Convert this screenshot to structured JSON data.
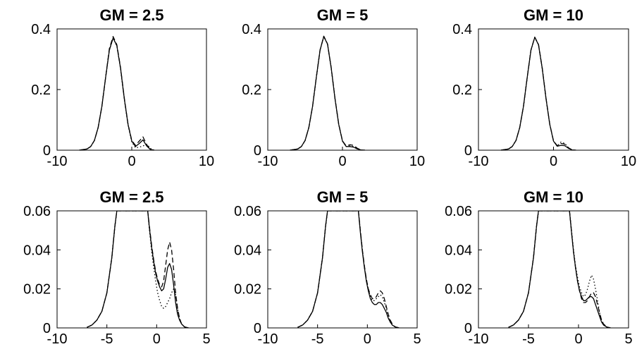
{
  "chart_data": [
    {
      "type": "line",
      "title": "GM = 2.5",
      "xlim": [
        -10,
        10
      ],
      "ylim": [
        0,
        0.4
      ],
      "xticks": [
        -10,
        0,
        10
      ],
      "xtick_labels": [
        "-10",
        "0",
        "10"
      ],
      "yticks": [
        0,
        0.2,
        0.4
      ],
      "ytick_labels": [
        "0",
        "0.2",
        "0.4"
      ],
      "x": [
        -7,
        -6,
        -5.5,
        -5,
        -4.5,
        -4,
        -3.5,
        -3,
        -2.5,
        -2,
        -1.5,
        -1,
        -0.5,
        0,
        0.5,
        1,
        1.5,
        2,
        2.5,
        3
      ],
      "series": [
        {
          "dash": "solid",
          "values": [
            0.0003,
            0.004,
            0.012,
            0.032,
            0.075,
            0.145,
            0.24,
            0.33,
            0.37,
            0.345,
            0.27,
            0.17,
            0.085,
            0.03,
            0.012,
            0.022,
            0.034,
            0.014,
            0.002,
            0.0
          ]
        },
        {
          "dash": "dashed",
          "values": [
            0.0003,
            0.004,
            0.012,
            0.032,
            0.075,
            0.145,
            0.24,
            0.335,
            0.375,
            0.348,
            0.272,
            0.172,
            0.086,
            0.032,
            0.016,
            0.03,
            0.044,
            0.018,
            0.003,
            0.0
          ]
        },
        {
          "dash": "dotted",
          "values": [
            0.0003,
            0.004,
            0.012,
            0.032,
            0.075,
            0.145,
            0.24,
            0.33,
            0.37,
            0.344,
            0.268,
            0.168,
            0.083,
            0.028,
            0.008,
            0.01,
            0.014,
            0.02,
            0.006,
            0.0
          ]
        }
      ]
    },
    {
      "type": "line",
      "title": "GM = 5",
      "xlim": [
        -10,
        10
      ],
      "ylim": [
        0,
        0.4
      ],
      "xticks": [
        -10,
        0,
        10
      ],
      "xtick_labels": [
        "-10",
        "0",
        "10"
      ],
      "yticks": [
        0,
        0.2,
        0.4
      ],
      "ytick_labels": [
        "0",
        "0.2",
        "0.4"
      ],
      "x": [
        -7,
        -6,
        -5.5,
        -5,
        -4.5,
        -4,
        -3.5,
        -3,
        -2.5,
        -2,
        -1.5,
        -1,
        -0.5,
        0,
        0.5,
        1,
        1.5,
        2,
        2.5,
        3
      ],
      "series": [
        {
          "dash": "solid",
          "values": [
            0.0003,
            0.004,
            0.012,
            0.032,
            0.075,
            0.145,
            0.24,
            0.33,
            0.375,
            0.35,
            0.27,
            0.17,
            0.085,
            0.03,
            0.012,
            0.012,
            0.01,
            0.004,
            0.001,
            0.0
          ]
        },
        {
          "dash": "dashed",
          "values": [
            0.0003,
            0.004,
            0.012,
            0.032,
            0.075,
            0.145,
            0.24,
            0.33,
            0.376,
            0.351,
            0.271,
            0.171,
            0.086,
            0.031,
            0.014,
            0.018,
            0.016,
            0.006,
            0.001,
            0.0
          ]
        },
        {
          "dash": "dotted",
          "values": [
            0.0003,
            0.004,
            0.012,
            0.032,
            0.075,
            0.145,
            0.24,
            0.33,
            0.375,
            0.35,
            0.27,
            0.17,
            0.085,
            0.03,
            0.012,
            0.014,
            0.012,
            0.005,
            0.001,
            0.0
          ]
        }
      ]
    },
    {
      "type": "line",
      "title": "GM = 10",
      "xlim": [
        -10,
        10
      ],
      "ylim": [
        0,
        0.4
      ],
      "xticks": [
        -10,
        0,
        10
      ],
      "xtick_labels": [
        "-10",
        "0",
        "10"
      ],
      "yticks": [
        0,
        0.2,
        0.4
      ],
      "ytick_labels": [
        "0",
        "0.2",
        "0.4"
      ],
      "x": [
        -7,
        -6,
        -5.5,
        -5,
        -4.5,
        -4,
        -3.5,
        -3,
        -2.5,
        -2,
        -1.5,
        -1,
        -0.5,
        0,
        0.5,
        1,
        1.5,
        2,
        2.5,
        3
      ],
      "series": [
        {
          "dash": "solid",
          "values": [
            0.0003,
            0.004,
            0.012,
            0.032,
            0.075,
            0.145,
            0.24,
            0.33,
            0.372,
            0.348,
            0.27,
            0.17,
            0.085,
            0.03,
            0.013,
            0.016,
            0.015,
            0.006,
            0.001,
            0.0
          ]
        },
        {
          "dash": "dashed",
          "values": [
            0.0003,
            0.004,
            0.012,
            0.032,
            0.075,
            0.145,
            0.24,
            0.33,
            0.373,
            0.349,
            0.271,
            0.171,
            0.086,
            0.031,
            0.015,
            0.022,
            0.02,
            0.008,
            0.001,
            0.0
          ]
        },
        {
          "dash": "dotted",
          "values": [
            0.0003,
            0.004,
            0.012,
            0.032,
            0.075,
            0.145,
            0.24,
            0.33,
            0.372,
            0.348,
            0.27,
            0.17,
            0.085,
            0.03,
            0.013,
            0.027,
            0.022,
            0.008,
            0.001,
            0.0
          ]
        }
      ]
    },
    {
      "type": "line",
      "title": "GM = 2.5",
      "xlim": [
        -10,
        5
      ],
      "ylim": [
        0,
        0.06
      ],
      "xticks": [
        -10,
        -5,
        0,
        5
      ],
      "xtick_labels": [
        "-10",
        "-5",
        "0",
        "5"
      ],
      "yticks": [
        0,
        0.02,
        0.04,
        0.06
      ],
      "ytick_labels": [
        "0",
        "0.02",
        "0.04",
        "0.06"
      ],
      "x": [
        -7,
        -6.5,
        -6,
        -5.5,
        -5,
        -4.5,
        -4.2,
        -4,
        -3.9,
        -0.9,
        -0.7,
        -0.5,
        -0.3,
        -0.1,
        0.1,
        0.3,
        0.5,
        0.7,
        0.9,
        1.1,
        1.3,
        1.5,
        1.7,
        1.9,
        2.1,
        2.3,
        2.5,
        2.8,
        3.2
      ],
      "series": [
        {
          "dash": "solid",
          "values": [
            0.0003,
            0.0015,
            0.004,
            0.0085,
            0.018,
            0.036,
            0.052,
            0.06,
            0.06,
            0.06,
            0.05,
            0.041,
            0.034,
            0.028,
            0.024,
            0.021,
            0.019,
            0.02,
            0.025,
            0.031,
            0.033,
            0.03,
            0.022,
            0.013,
            0.007,
            0.004,
            0.002,
            0.0005,
            0.0
          ]
        },
        {
          "dash": "dashed",
          "values": [
            0.0003,
            0.0015,
            0.004,
            0.0085,
            0.018,
            0.036,
            0.052,
            0.06,
            0.06,
            0.06,
            0.051,
            0.042,
            0.035,
            0.029,
            0.025,
            0.022,
            0.021,
            0.024,
            0.032,
            0.04,
            0.044,
            0.04,
            0.03,
            0.018,
            0.01,
            0.005,
            0.002,
            0.0005,
            0.0
          ]
        },
        {
          "dash": "dotted",
          "values": [
            0.0003,
            0.0015,
            0.004,
            0.0085,
            0.018,
            0.036,
            0.052,
            0.06,
            0.06,
            0.06,
            0.049,
            0.039,
            0.031,
            0.024,
            0.018,
            0.014,
            0.011,
            0.01,
            0.011,
            0.013,
            0.015,
            0.018,
            0.02,
            0.017,
            0.01,
            0.005,
            0.002,
            0.0005,
            0.0
          ]
        }
      ]
    },
    {
      "type": "line",
      "title": "GM = 5",
      "xlim": [
        -10,
        5
      ],
      "ylim": [
        0,
        0.06
      ],
      "xticks": [
        -10,
        -5,
        0,
        5
      ],
      "xtick_labels": [
        "-10",
        "-5",
        "0",
        "5"
      ],
      "yticks": [
        0,
        0.02,
        0.04,
        0.06
      ],
      "ytick_labels": [
        "0",
        "0.02",
        "0.04",
        "0.06"
      ],
      "x": [
        -7,
        -6.5,
        -6,
        -5.5,
        -5,
        -4.5,
        -4.2,
        -4,
        -3.9,
        -0.9,
        -0.7,
        -0.5,
        -0.3,
        -0.1,
        0.1,
        0.3,
        0.5,
        0.7,
        0.9,
        1.1,
        1.3,
        1.5,
        1.7,
        1.9,
        2.1,
        2.3,
        2.5,
        2.8,
        3.2
      ],
      "series": [
        {
          "dash": "solid",
          "values": [
            0.0003,
            0.0015,
            0.004,
            0.0085,
            0.018,
            0.036,
            0.052,
            0.06,
            0.06,
            0.06,
            0.049,
            0.039,
            0.031,
            0.024,
            0.019,
            0.015,
            0.013,
            0.012,
            0.012,
            0.013,
            0.013,
            0.012,
            0.01,
            0.008,
            0.005,
            0.003,
            0.0015,
            0.0005,
            0.0
          ]
        },
        {
          "dash": "dashed",
          "values": [
            0.0003,
            0.0015,
            0.004,
            0.0085,
            0.018,
            0.036,
            0.052,
            0.06,
            0.06,
            0.06,
            0.05,
            0.04,
            0.032,
            0.025,
            0.02,
            0.017,
            0.015,
            0.015,
            0.016,
            0.018,
            0.019,
            0.018,
            0.015,
            0.011,
            0.007,
            0.004,
            0.002,
            0.0005,
            0.0
          ]
        },
        {
          "dash": "dotted",
          "values": [
            0.0003,
            0.0015,
            0.004,
            0.0085,
            0.018,
            0.036,
            0.052,
            0.06,
            0.06,
            0.06,
            0.05,
            0.04,
            0.031,
            0.025,
            0.02,
            0.016,
            0.014,
            0.014,
            0.015,
            0.016,
            0.017,
            0.016,
            0.013,
            0.01,
            0.006,
            0.003,
            0.0015,
            0.0005,
            0.0
          ]
        }
      ]
    },
    {
      "type": "line",
      "title": "GM = 10",
      "xlim": [
        -10,
        5
      ],
      "ylim": [
        0,
        0.06
      ],
      "xticks": [
        -10,
        -5,
        0,
        5
      ],
      "xtick_labels": [
        "-10",
        "-5",
        "0",
        "5"
      ],
      "yticks": [
        0,
        0.02,
        0.04,
        0.06
      ],
      "ytick_labels": [
        "0",
        "0.02",
        "0.04",
        "0.06"
      ],
      "x": [
        -7,
        -6.5,
        -6,
        -5.5,
        -5,
        -4.5,
        -4.2,
        -4,
        -3.9,
        -0.9,
        -0.7,
        -0.5,
        -0.3,
        -0.1,
        0.1,
        0.3,
        0.5,
        0.7,
        0.9,
        1.1,
        1.3,
        1.5,
        1.7,
        1.9,
        2.1,
        2.3,
        2.5,
        2.8,
        3.2
      ],
      "series": [
        {
          "dash": "solid",
          "values": [
            0.0003,
            0.0015,
            0.004,
            0.0085,
            0.018,
            0.036,
            0.052,
            0.06,
            0.06,
            0.06,
            0.049,
            0.039,
            0.031,
            0.024,
            0.019,
            0.016,
            0.014,
            0.014,
            0.015,
            0.016,
            0.016,
            0.015,
            0.012,
            0.009,
            0.006,
            0.003,
            0.0015,
            0.0005,
            0.0
          ]
        },
        {
          "dash": "dashed",
          "values": [
            0.0003,
            0.0015,
            0.004,
            0.0085,
            0.018,
            0.036,
            0.052,
            0.06,
            0.06,
            0.06,
            0.049,
            0.039,
            0.031,
            0.024,
            0.019,
            0.015,
            0.013,
            0.013,
            0.014,
            0.016,
            0.018,
            0.018,
            0.016,
            0.012,
            0.008,
            0.004,
            0.002,
            0.0005,
            0.0
          ]
        },
        {
          "dash": "dotted",
          "values": [
            0.0003,
            0.0015,
            0.004,
            0.0085,
            0.018,
            0.036,
            0.052,
            0.06,
            0.06,
            0.06,
            0.05,
            0.04,
            0.032,
            0.026,
            0.021,
            0.018,
            0.016,
            0.017,
            0.02,
            0.024,
            0.027,
            0.025,
            0.02,
            0.014,
            0.008,
            0.004,
            0.002,
            0.0005,
            0.0
          ]
        }
      ]
    }
  ]
}
